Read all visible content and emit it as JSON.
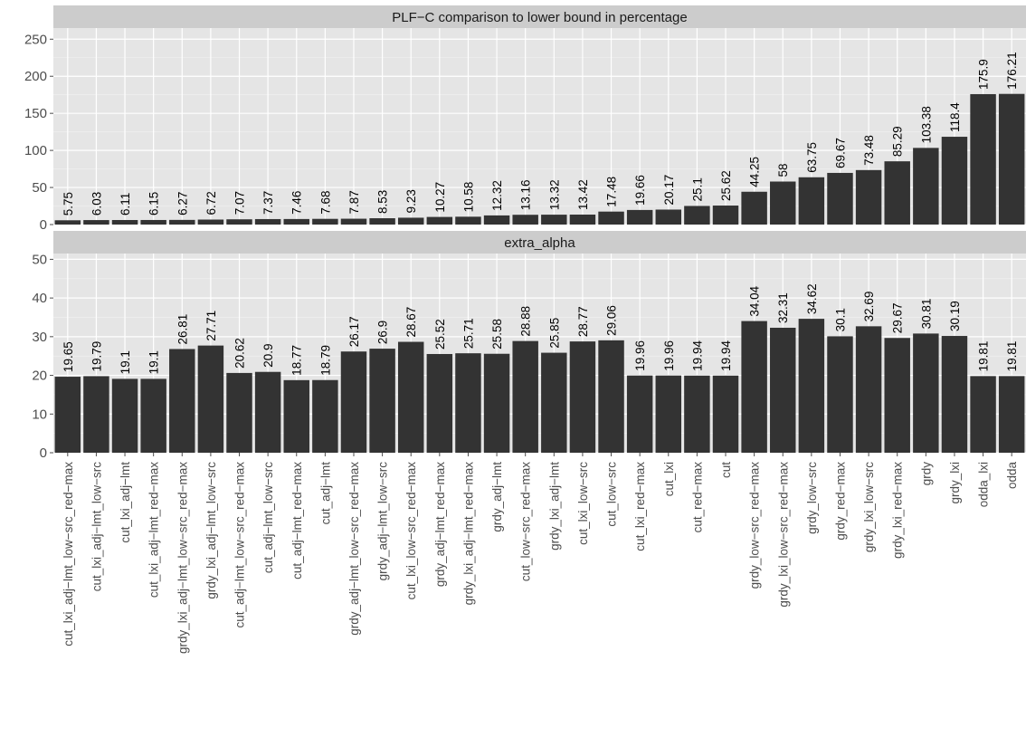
{
  "chart_data": {
    "type": "bar",
    "layout": "faceted-vertical",
    "categories": [
      "cut_lxi_adj−lmt_low−src_red−max",
      "cut_lxi_adj−lmt_low−src",
      "cut_lxi_adj−lmt",
      "cut_lxi_adj−lmt_red−max",
      "grdy_lxi_adj−lmt_low−src_red−max",
      "grdy_lxi_adj−lmt_low−src",
      "cut_adj−lmt_low−src_red−max",
      "cut_adj−lmt_low−src",
      "cut_adj−lmt_red−max",
      "cut_adj−lmt",
      "grdy_adj−lmt_low−src_red−max",
      "grdy_adj−lmt_low−src",
      "cut_lxi_low−src_red−max",
      "grdy_adj−lmt_red−max",
      "grdy_lxi_adj−lmt_red−max",
      "grdy_adj−lmt",
      "cut_low−src_red−max",
      "grdy_lxi_adj−lmt",
      "cut_lxi_low−src",
      "cut_low−src",
      "cut_lxi_red−max",
      "cut_lxi",
      "cut_red−max",
      "cut",
      "grdy_low−src_red−max",
      "grdy_lxi_low−src_red−max",
      "grdy_low−src",
      "grdy_red−max",
      "grdy_lxi_low−src",
      "grdy_lxi_red−max",
      "grdy",
      "grdy_lxi",
      "odda_lxi",
      "odda"
    ],
    "panels": [
      {
        "title": "PLF−C comparison to lower bound in percentage",
        "ylim": [
          0,
          265
        ],
        "yticks": [
          0,
          50,
          100,
          150,
          200,
          250
        ],
        "values": [
          5.75,
          6.03,
          6.11,
          6.15,
          6.27,
          6.72,
          7.07,
          7.37,
          7.46,
          7.68,
          7.87,
          8.53,
          9.23,
          10.27,
          10.58,
          12.32,
          13.16,
          13.32,
          13.42,
          17.48,
          19.66,
          20.17,
          25.1,
          25.62,
          44.25,
          58,
          63.75,
          69.67,
          73.48,
          85.29,
          103.38,
          118.4,
          175.9,
          176.21
        ],
        "labels": [
          "5.75",
          "6.03",
          "6.11",
          "6.15",
          "6.27",
          "6.72",
          "7.07",
          "7.37",
          "7.46",
          "7.68",
          "7.87",
          "8.53",
          "9.23",
          "10.27",
          "10.58",
          "12.32",
          "13.16",
          "13.32",
          "13.42",
          "17.48",
          "19.66",
          "20.17",
          "25.1",
          "25.62",
          "44.25",
          "58",
          "63.75",
          "69.67",
          "73.48",
          "85.29",
          "103.38",
          "118.4",
          "175.9",
          "176.21"
        ]
      },
      {
        "title": "extra_alpha",
        "ylim": [
          0,
          51.5
        ],
        "yticks": [
          0,
          10,
          20,
          30,
          40,
          50
        ],
        "values": [
          19.65,
          19.79,
          19.1,
          19.1,
          26.81,
          27.71,
          20.62,
          20.9,
          18.77,
          18.79,
          26.17,
          26.9,
          28.67,
          25.52,
          25.71,
          25.58,
          28.88,
          25.85,
          28.77,
          29.06,
          19.96,
          19.96,
          19.94,
          19.94,
          34.04,
          32.31,
          34.62,
          30.1,
          32.69,
          29.67,
          30.81,
          30.19,
          19.81,
          19.81
        ],
        "labels": [
          "19.65",
          "19.79",
          "19.1",
          "19.1",
          "26.81",
          "27.71",
          "20.62",
          "20.9",
          "18.77",
          "18.79",
          "26.17",
          "26.9",
          "28.67",
          "25.52",
          "25.71",
          "25.58",
          "28.88",
          "25.85",
          "28.77",
          "29.06",
          "19.96",
          "19.96",
          "19.94",
          "19.94",
          "34.04",
          "32.31",
          "34.62",
          "30.1",
          "32.69",
          "29.67",
          "30.81",
          "30.19",
          "19.81",
          "19.81"
        ]
      }
    ],
    "colors": {
      "bar": "#333333",
      "panel_bg": "#e5e5e5",
      "strip_bg": "#cccccc",
      "grid": "#ffffff",
      "tick_text": "#4d4d4d",
      "label_text": "#000000"
    },
    "grid": true,
    "legend": "none"
  }
}
